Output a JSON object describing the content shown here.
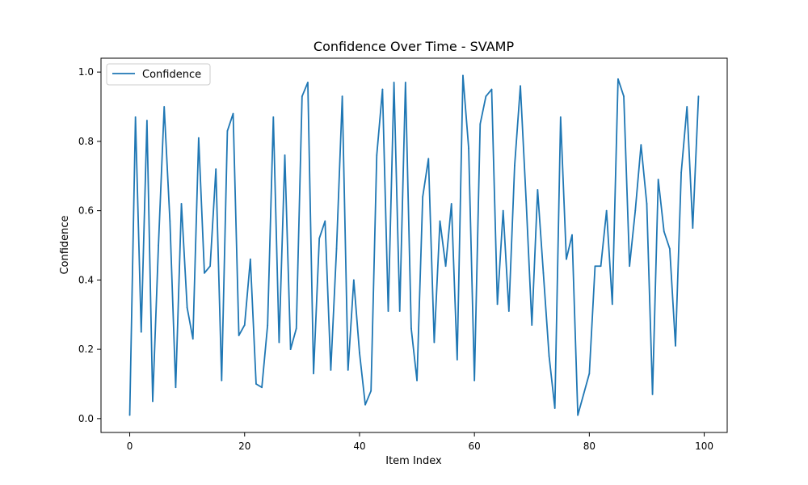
{
  "chart_data": {
    "type": "line",
    "title": "Confidence Over Time - SVAMP",
    "xlabel": "Item Index",
    "ylabel": "Confidence",
    "xlim": [
      -5,
      104
    ],
    "ylim": [
      -0.04,
      1.04
    ],
    "xticks": [
      0,
      20,
      40,
      60,
      80,
      100
    ],
    "yticks": [
      0.0,
      0.2,
      0.4,
      0.6,
      0.8,
      1.0
    ],
    "xtick_labels": [
      "0",
      "20",
      "40",
      "60",
      "80",
      "100"
    ],
    "ytick_labels": [
      "0.0",
      "0.2",
      "0.4",
      "0.6",
      "0.8",
      "1.0"
    ],
    "grid": false,
    "legend": {
      "placement": "top-left",
      "entries": [
        "Confidence"
      ]
    },
    "colors": {
      "line": "#1f77b4",
      "frame": "#000000"
    },
    "series": [
      {
        "name": "Confidence",
        "x": [
          0,
          1,
          2,
          3,
          4,
          5,
          6,
          7,
          8,
          9,
          10,
          11,
          12,
          13,
          14,
          15,
          16,
          17,
          18,
          19,
          20,
          21,
          22,
          23,
          24,
          25,
          26,
          27,
          28,
          29,
          30,
          31,
          32,
          33,
          34,
          35,
          36,
          37,
          38,
          39,
          40,
          41,
          42,
          43,
          44,
          45,
          46,
          47,
          48,
          49,
          50,
          51,
          52,
          53,
          54,
          55,
          56,
          57,
          58,
          59,
          60,
          61,
          62,
          63,
          64,
          65,
          66,
          67,
          68,
          69,
          70,
          71,
          72,
          73,
          74,
          75,
          76,
          77,
          78,
          79,
          80,
          81,
          82,
          83,
          84,
          85,
          86,
          87,
          88,
          89,
          90,
          91,
          92,
          93,
          94,
          95,
          96,
          97,
          98,
          99
        ],
        "values": [
          0.01,
          0.87,
          0.25,
          0.86,
          0.05,
          0.5,
          0.9,
          0.57,
          0.09,
          0.62,
          0.32,
          0.23,
          0.81,
          0.42,
          0.44,
          0.72,
          0.11,
          0.83,
          0.88,
          0.24,
          0.27,
          0.46,
          0.1,
          0.09,
          0.27,
          0.87,
          0.22,
          0.76,
          0.2,
          0.26,
          0.93,
          0.97,
          0.13,
          0.52,
          0.57,
          0.14,
          0.49,
          0.93,
          0.14,
          0.4,
          0.19,
          0.04,
          0.08,
          0.76,
          0.95,
          0.31,
          0.97,
          0.31,
          0.97,
          0.26,
          0.11,
          0.64,
          0.75,
          0.22,
          0.57,
          0.44,
          0.62,
          0.17,
          0.99,
          0.78,
          0.11,
          0.85,
          0.93,
          0.95,
          0.33,
          0.6,
          0.31,
          0.73,
          0.96,
          0.63,
          0.27,
          0.66,
          0.42,
          0.18,
          0.03,
          0.87,
          0.46,
          0.53,
          0.01,
          0.07,
          0.13,
          0.44,
          0.44,
          0.6,
          0.33,
          0.98,
          0.93,
          0.44,
          0.6,
          0.79,
          0.62,
          0.07,
          0.69,
          0.54,
          0.49,
          0.21,
          0.71,
          0.9,
          0.55,
          0.93
        ]
      }
    ]
  }
}
